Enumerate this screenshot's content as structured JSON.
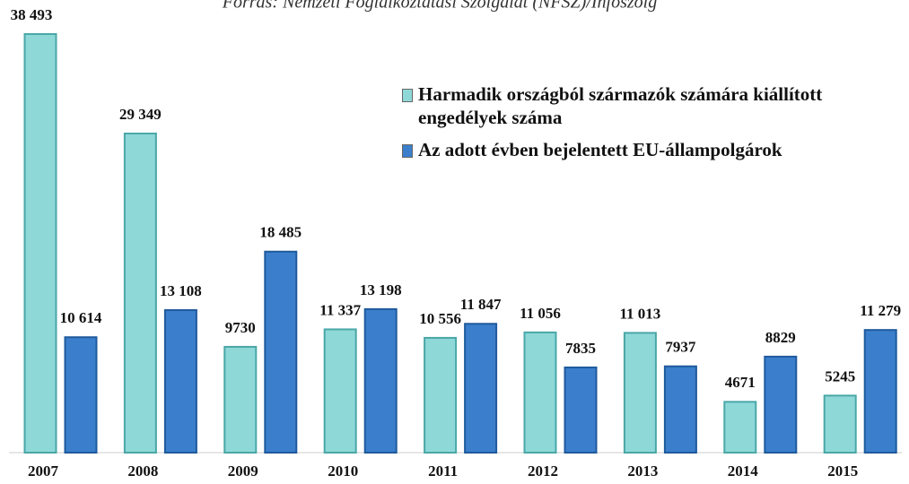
{
  "chart_data": {
    "type": "bar",
    "subtitle": "Forrás: Nemzeti Foglalkoztatási Szolgálat (NFSZ)/Infoszolg",
    "categories": [
      "2007",
      "2008",
      "2009",
      "2010",
      "2011",
      "2012",
      "2013",
      "2014",
      "2015"
    ],
    "series": [
      {
        "name": "Harmadik országból származók számára kiállított engedélyek száma",
        "color": "#8fd8d8",
        "values": [
          38493,
          29349,
          9730,
          11337,
          10556,
          11056,
          11013,
          4671,
          5245
        ],
        "value_labels": [
          "38 493",
          "29 349",
          "9730",
          "11 337",
          "10 556",
          "11 056",
          "11 013",
          "4671",
          "5245"
        ]
      },
      {
        "name": "Az adott évben bejelentett EU-állampolgárok",
        "color": "#3b7fcc",
        "values": [
          10614,
          13108,
          18485,
          13198,
          11847,
          7835,
          7937,
          8829,
          11279
        ],
        "value_labels": [
          "10 614",
          "13 108",
          "18 485",
          "13 198",
          "11 847",
          "7835",
          "7937",
          "8829",
          "11 279"
        ]
      }
    ],
    "legend": "top-right"
  }
}
